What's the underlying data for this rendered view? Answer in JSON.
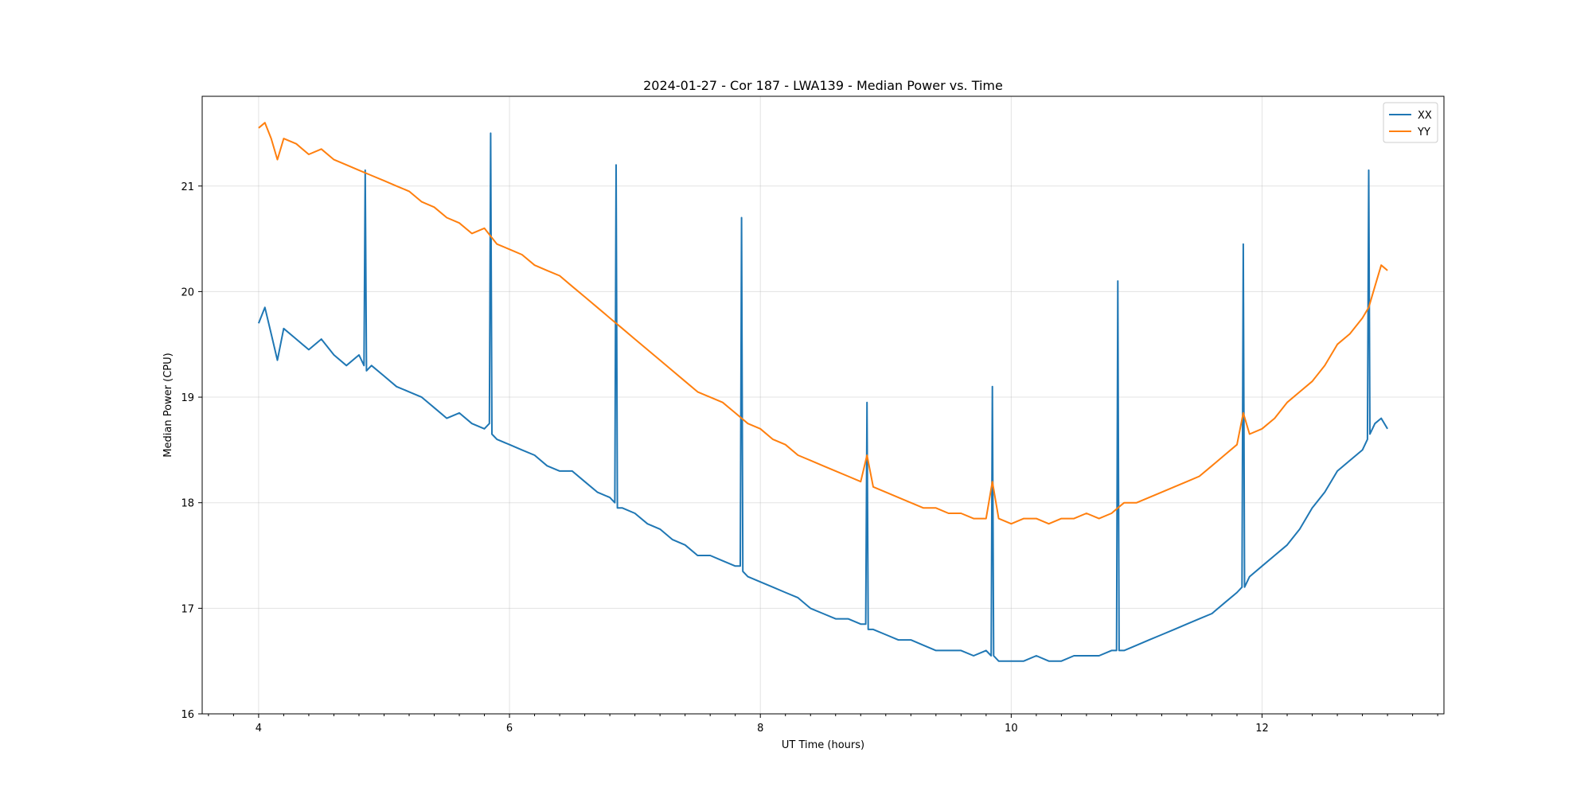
{
  "chart_data": {
    "type": "line",
    "title": "2024-01-27 - Cor 187 - LWA139 - Median Power vs. Time",
    "xlabel": "UT Time (hours)",
    "ylabel": "Median Power (CPU)",
    "xlim": [
      3.55,
      13.45
    ],
    "ylim": [
      16,
      21.85
    ],
    "xticks": [
      4,
      6,
      8,
      10,
      12
    ],
    "yticks": [
      16,
      17,
      18,
      19,
      20,
      21
    ],
    "xtick_labels": [
      "4",
      "6",
      "8",
      "10",
      "12"
    ],
    "ytick_labels": [
      "16",
      "17",
      "18",
      "19",
      "20",
      "21"
    ],
    "grid": true,
    "legend_position": "top-right",
    "series": [
      {
        "name": "XX",
        "color": "#1f77b4",
        "x": [
          4.0,
          4.05,
          4.1,
          4.15,
          4.2,
          4.3,
          4.4,
          4.5,
          4.6,
          4.7,
          4.8,
          4.84,
          4.85,
          4.86,
          4.9,
          5.0,
          5.1,
          5.2,
          5.3,
          5.4,
          5.5,
          5.6,
          5.7,
          5.8,
          5.84,
          5.85,
          5.86,
          5.9,
          6.0,
          6.1,
          6.2,
          6.3,
          6.4,
          6.5,
          6.6,
          6.7,
          6.8,
          6.84,
          6.85,
          6.86,
          6.9,
          7.0,
          7.1,
          7.2,
          7.3,
          7.4,
          7.5,
          7.6,
          7.7,
          7.8,
          7.84,
          7.85,
          7.86,
          7.9,
          8.0,
          8.1,
          8.2,
          8.3,
          8.4,
          8.5,
          8.6,
          8.7,
          8.8,
          8.84,
          8.85,
          8.86,
          8.9,
          9.0,
          9.1,
          9.2,
          9.3,
          9.4,
          9.5,
          9.6,
          9.7,
          9.8,
          9.84,
          9.85,
          9.86,
          9.9,
          10.0,
          10.1,
          10.2,
          10.3,
          10.4,
          10.5,
          10.6,
          10.7,
          10.8,
          10.84,
          10.85,
          10.86,
          10.9,
          11.0,
          11.1,
          11.2,
          11.3,
          11.4,
          11.5,
          11.6,
          11.7,
          11.8,
          11.84,
          11.85,
          11.86,
          11.9,
          12.0,
          12.1,
          12.2,
          12.3,
          12.4,
          12.5,
          12.6,
          12.7,
          12.8,
          12.84,
          12.85,
          12.86,
          12.9,
          12.95,
          13.0
        ],
        "y": [
          19.7,
          19.85,
          19.6,
          19.35,
          19.65,
          19.55,
          19.45,
          19.55,
          19.4,
          19.3,
          19.4,
          19.3,
          21.15,
          19.25,
          19.3,
          19.2,
          19.1,
          19.05,
          19.0,
          18.9,
          18.8,
          18.85,
          18.75,
          18.7,
          18.75,
          21.5,
          18.65,
          18.6,
          18.55,
          18.5,
          18.45,
          18.35,
          18.3,
          18.3,
          18.2,
          18.1,
          18.05,
          18.0,
          21.2,
          17.95,
          17.95,
          17.9,
          17.8,
          17.75,
          17.65,
          17.6,
          17.5,
          17.5,
          17.45,
          17.4,
          17.4,
          20.7,
          17.35,
          17.3,
          17.25,
          17.2,
          17.15,
          17.1,
          17.0,
          16.95,
          16.9,
          16.9,
          16.85,
          16.85,
          18.95,
          16.8,
          16.8,
          16.75,
          16.7,
          16.7,
          16.65,
          16.6,
          16.6,
          16.6,
          16.55,
          16.6,
          16.55,
          19.1,
          16.55,
          16.5,
          16.5,
          16.5,
          16.55,
          16.5,
          16.5,
          16.55,
          16.55,
          16.55,
          16.6,
          16.6,
          20.1,
          16.6,
          16.6,
          16.65,
          16.7,
          16.75,
          16.8,
          16.85,
          16.9,
          16.95,
          17.05,
          17.15,
          17.2,
          20.45,
          17.2,
          17.3,
          17.4,
          17.5,
          17.6,
          17.75,
          17.95,
          18.1,
          18.3,
          18.4,
          18.5,
          18.6,
          21.15,
          18.65,
          18.75,
          18.8,
          18.7
        ]
      },
      {
        "name": "YY",
        "color": "#ff7f0e",
        "x": [
          4.0,
          4.05,
          4.1,
          4.15,
          4.2,
          4.3,
          4.4,
          4.5,
          4.6,
          4.7,
          4.8,
          4.9,
          5.0,
          5.1,
          5.2,
          5.3,
          5.4,
          5.5,
          5.6,
          5.7,
          5.8,
          5.9,
          6.0,
          6.1,
          6.2,
          6.3,
          6.4,
          6.5,
          6.6,
          6.7,
          6.8,
          6.9,
          7.0,
          7.1,
          7.2,
          7.3,
          7.4,
          7.5,
          7.6,
          7.7,
          7.8,
          7.9,
          8.0,
          8.1,
          8.2,
          8.3,
          8.4,
          8.5,
          8.6,
          8.7,
          8.8,
          8.85,
          8.9,
          9.0,
          9.1,
          9.2,
          9.3,
          9.4,
          9.5,
          9.6,
          9.7,
          9.8,
          9.85,
          9.9,
          10.0,
          10.1,
          10.2,
          10.3,
          10.4,
          10.5,
          10.6,
          10.7,
          10.8,
          10.85,
          10.9,
          11.0,
          11.1,
          11.2,
          11.3,
          11.4,
          11.5,
          11.6,
          11.7,
          11.8,
          11.85,
          11.9,
          12.0,
          12.1,
          12.2,
          12.3,
          12.4,
          12.5,
          12.6,
          12.7,
          12.8,
          12.85,
          12.9,
          12.95,
          13.0
        ],
        "y": [
          21.55,
          21.6,
          21.45,
          21.25,
          21.45,
          21.4,
          21.3,
          21.35,
          21.25,
          21.2,
          21.15,
          21.1,
          21.05,
          21.0,
          20.95,
          20.85,
          20.8,
          20.7,
          20.65,
          20.55,
          20.6,
          20.45,
          20.4,
          20.35,
          20.25,
          20.2,
          20.15,
          20.05,
          19.95,
          19.85,
          19.75,
          19.65,
          19.55,
          19.45,
          19.35,
          19.25,
          19.15,
          19.05,
          19.0,
          18.95,
          18.85,
          18.75,
          18.7,
          18.6,
          18.55,
          18.45,
          18.4,
          18.35,
          18.3,
          18.25,
          18.2,
          18.45,
          18.15,
          18.1,
          18.05,
          18.0,
          17.95,
          17.95,
          17.9,
          17.9,
          17.85,
          17.85,
          18.2,
          17.85,
          17.8,
          17.85,
          17.85,
          17.8,
          17.85,
          17.85,
          17.9,
          17.85,
          17.9,
          17.95,
          18.0,
          18.0,
          18.05,
          18.1,
          18.15,
          18.2,
          18.25,
          18.35,
          18.45,
          18.55,
          18.85,
          18.65,
          18.7,
          18.8,
          18.95,
          19.05,
          19.15,
          19.3,
          19.5,
          19.6,
          19.75,
          19.85,
          20.05,
          20.25,
          20.2
        ]
      }
    ]
  }
}
